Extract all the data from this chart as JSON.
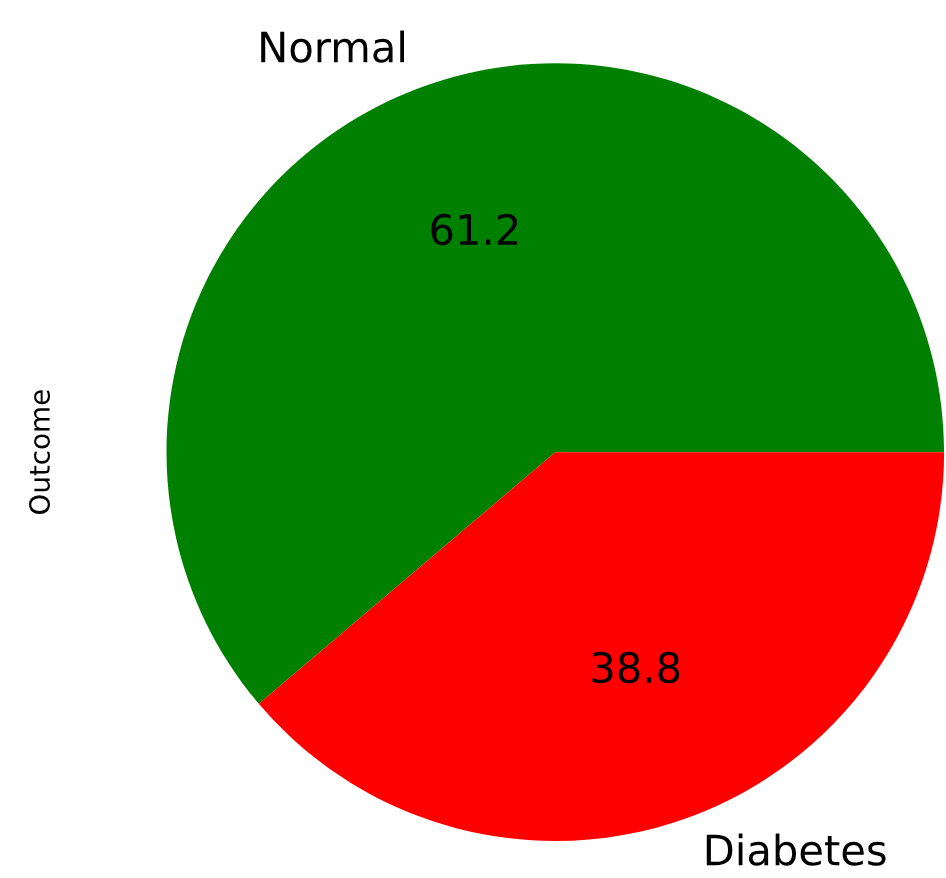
{
  "chart_data": {
    "type": "pie",
    "ylabel": "Outcome",
    "categories": [
      "Normal",
      "Diabetes"
    ],
    "values": [
      61.2,
      38.8
    ],
    "colors": [
      "#008000",
      "#ff0000"
    ],
    "data_labels": true
  }
}
